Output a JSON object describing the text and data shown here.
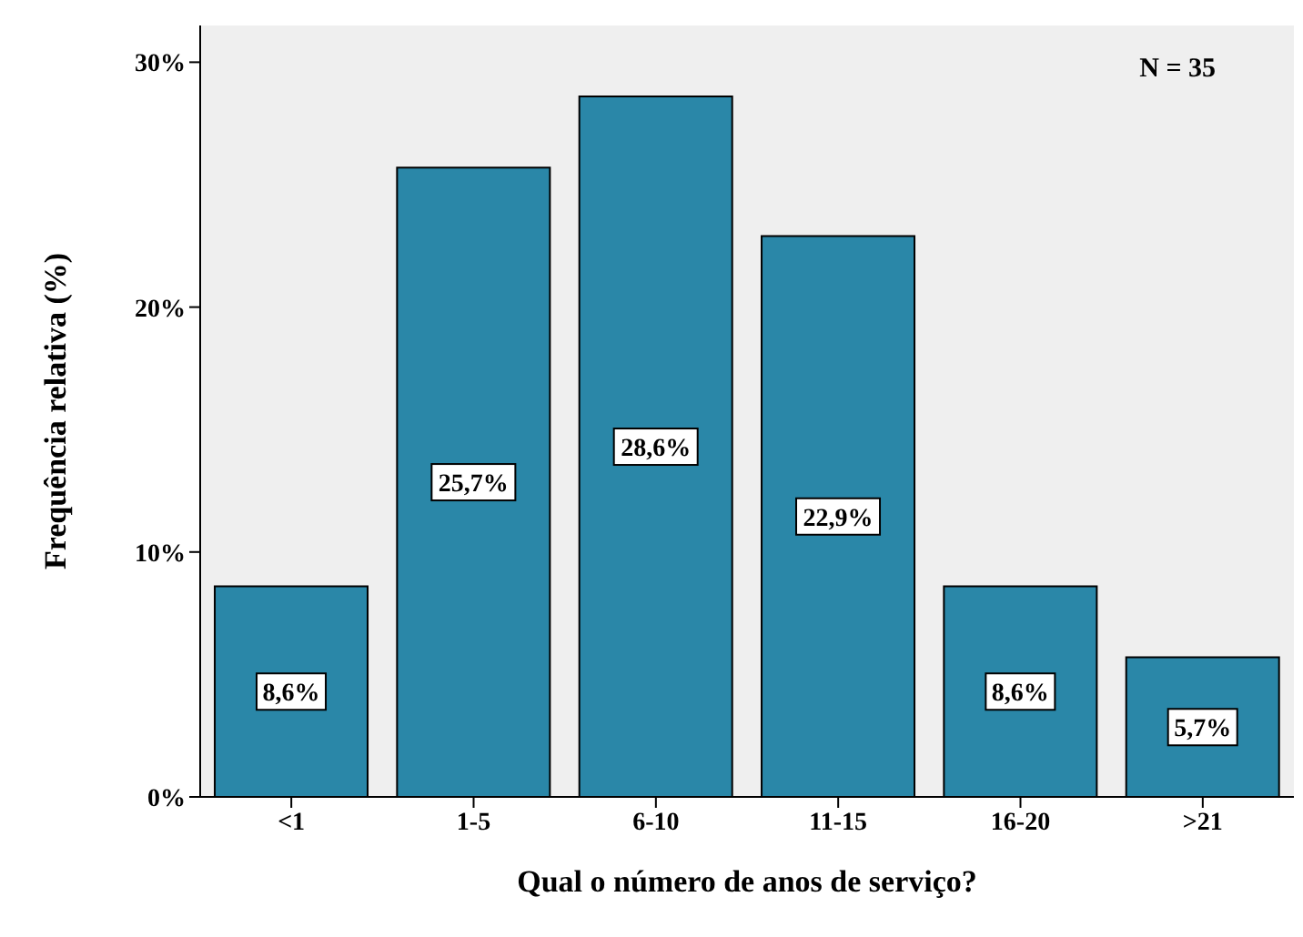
{
  "chart_data": {
    "type": "bar",
    "xlabel": "Qual o número de anos de serviço?",
    "ylabel": "Frequência relativa (%)",
    "categories": [
      "<1",
      "1-5",
      "6-10",
      "11-15",
      "16-20",
      ">21"
    ],
    "values": [
      8.6,
      25.7,
      28.6,
      22.9,
      8.6,
      5.7
    ],
    "value_labels": [
      "8,6%",
      "25,7%",
      "28,6%",
      "22,9%",
      "8,6%",
      "5,7%"
    ],
    "color": "#2a87a8",
    "ylim": [
      0,
      31.5
    ],
    "yticks": [
      {
        "value": 0,
        "label": "0%"
      },
      {
        "value": 10,
        "label": "10%"
      },
      {
        "value": 20,
        "label": "20%"
      },
      {
        "value": 30,
        "label": "30%"
      }
    ],
    "annotations": [
      "N = 35"
    ],
    "grid": false,
    "legend": false
  }
}
